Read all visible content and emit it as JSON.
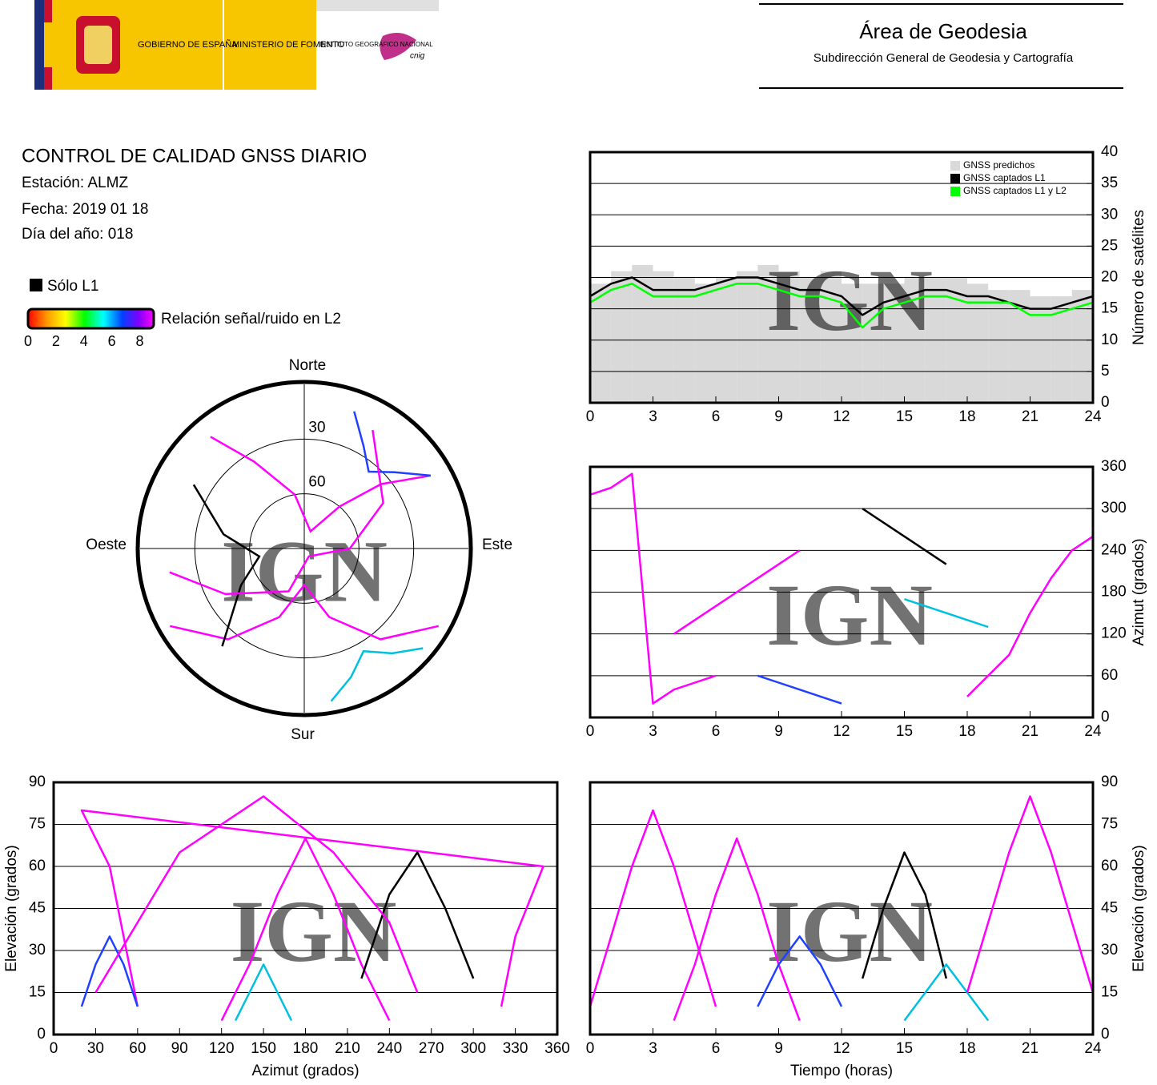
{
  "header": {
    "gobierno": "GOBIERNO DE ESPAÑA",
    "ministerio": "MINISTERIO DE FOMENTO",
    "instituto": "INSTITUTO GEOGRÁFICO NACIONAL",
    "cnig": "cnig",
    "area": "Área de Geodesia",
    "subdireccion": "Subdirección General de Geodesia y Cartografía"
  },
  "info": {
    "title": "CONTROL DE CALIDAD GNSS DIARIO",
    "station": "Estación: ALMZ",
    "date": "Fecha: 2019 01 18",
    "doy": "Día del año: 018"
  },
  "legend": {
    "l1_only": "Sólo L1",
    "colorbar_label": "Relación señal/ruido en L2",
    "colorbar_lim": [
      0,
      9
    ],
    "colorbar_ticks": [
      0,
      2,
      4,
      6,
      8
    ]
  },
  "watermark": "IGN",
  "chart_data": [
    {
      "type": "polar",
      "directions": {
        "north": "Norte",
        "south": "Sur",
        "east": "Este",
        "west": "Oeste"
      },
      "rlim": [
        90,
        0
      ],
      "rticks": [
        30,
        60
      ],
      "series": [
        {
          "color": "#ff00ff",
          "azimuth": [
            320,
            330,
            350,
            20,
            40,
            50,
            60
          ],
          "elevation": [
            10,
            35,
            60,
            80,
            60,
            35,
            10
          ]
        },
        {
          "color": "#ff00ff",
          "azimuth": [
            120,
            140,
            160,
            180,
            200,
            220,
            240
          ],
          "elevation": [
            5,
            25,
            50,
            70,
            50,
            25,
            5
          ]
        },
        {
          "color": "#000000",
          "azimuth": [
            300,
            280,
            260,
            240,
            220
          ],
          "elevation": [
            20,
            45,
            65,
            50,
            20
          ]
        },
        {
          "color": "#2040ff",
          "azimuth": [
            60,
            50,
            40,
            30,
            20
          ],
          "elevation": [
            10,
            25,
            35,
            25,
            10
          ]
        },
        {
          "color": "#00c0e0",
          "azimuth": [
            170,
            160,
            150,
            140,
            130
          ],
          "elevation": [
            5,
            15,
            25,
            15,
            5
          ]
        },
        {
          "color": "#ff00ff",
          "azimuth": [
            30,
            60,
            90,
            150,
            200,
            240,
            260
          ],
          "elevation": [
            15,
            40,
            65,
            85,
            65,
            40,
            15
          ]
        }
      ]
    },
    {
      "type": "line",
      "ylabel": "Número de satélites",
      "y_axis_side": "right",
      "grid": true,
      "legend": "top-right",
      "x": [
        0,
        1,
        2,
        3,
        4,
        5,
        6,
        7,
        8,
        9,
        10,
        11,
        12,
        13,
        14,
        15,
        16,
        17,
        18,
        19,
        20,
        21,
        22,
        23,
        24
      ],
      "xlim": [
        0,
        24
      ],
      "xticks": [
        0,
        3,
        6,
        9,
        12,
        15,
        18,
        21,
        24
      ],
      "ylim": [
        0,
        40
      ],
      "yticks": [
        0,
        5,
        10,
        15,
        20,
        25,
        30,
        35,
        40
      ],
      "series": [
        {
          "name": "GNSS predichos",
          "color": "#d9d9d9",
          "mark": "bar",
          "values": [
            19,
            21,
            22,
            21,
            20,
            19,
            20,
            21,
            22,
            21,
            20,
            21,
            19,
            19,
            19,
            20,
            20,
            20,
            19,
            18,
            18,
            17,
            17,
            18,
            18
          ]
        },
        {
          "name": "GNSS captados L1",
          "color": "#000000",
          "values": [
            17,
            19,
            20,
            18,
            18,
            18,
            19,
            20,
            20,
            19,
            18,
            18,
            17,
            14,
            16,
            17,
            18,
            18,
            17,
            17,
            16,
            15,
            15,
            16,
            17
          ]
        },
        {
          "name": "GNSS captados L1 y L2",
          "color": "#00ff00",
          "values": [
            16,
            18,
            19,
            17,
            17,
            17,
            18,
            19,
            19,
            18,
            17,
            17,
            16,
            12,
            15,
            16,
            17,
            17,
            16,
            16,
            16,
            14,
            14,
            15,
            16
          ]
        }
      ]
    },
    {
      "type": "line",
      "ylabel": "Azimut (grados)",
      "y_axis_side": "right",
      "grid": true,
      "xlim": [
        0,
        24
      ],
      "xticks": [
        0,
        3,
        6,
        9,
        12,
        15,
        18,
        21,
        24
      ],
      "ylim": [
        0,
        360
      ],
      "yticks": [
        0,
        60,
        120,
        180,
        240,
        300,
        360
      ],
      "series": [
        {
          "color": "#ff00ff",
          "x": [
            0,
            1,
            2,
            3,
            4,
            5,
            6
          ],
          "values": [
            320,
            330,
            350,
            20,
            40,
            50,
            60
          ]
        },
        {
          "color": "#ff00ff",
          "x": [
            4,
            5,
            6,
            7,
            8,
            9,
            10
          ],
          "values": [
            120,
            140,
            160,
            180,
            200,
            220,
            240
          ]
        },
        {
          "color": "#000000",
          "x": [
            13,
            14,
            15,
            16,
            17
          ],
          "values": [
            300,
            280,
            260,
            240,
            220
          ]
        },
        {
          "color": "#2040ff",
          "x": [
            8,
            9,
            10,
            11,
            12
          ],
          "values": [
            60,
            50,
            40,
            30,
            20
          ]
        },
        {
          "color": "#00c0e0",
          "x": [
            15,
            16,
            17,
            18,
            19
          ],
          "values": [
            170,
            160,
            150,
            140,
            130
          ]
        },
        {
          "color": "#ff00ff",
          "x": [
            18,
            19,
            20,
            21,
            22,
            23,
            24
          ],
          "values": [
            30,
            60,
            90,
            150,
            200,
            240,
            260
          ]
        }
      ]
    },
    {
      "type": "line",
      "xlabel": "Azimut (grados)",
      "ylabel": "Elevación (grados)",
      "y_axis_side": "left",
      "grid": true,
      "xlim": [
        0,
        360
      ],
      "xticks": [
        0,
        30,
        60,
        90,
        120,
        150,
        180,
        210,
        240,
        270,
        300,
        330,
        360
      ],
      "ylim": [
        0,
        90
      ],
      "yticks": [
        0,
        15,
        30,
        45,
        60,
        75,
        90
      ],
      "series": [
        {
          "color": "#ff00ff",
          "x": [
            320,
            330,
            350,
            20,
            40,
            50,
            60
          ],
          "values": [
            10,
            35,
            60,
            80,
            60,
            35,
            10
          ],
          "wrap": true
        },
        {
          "color": "#ff00ff",
          "x": [
            120,
            140,
            160,
            180,
            200,
            220,
            240
          ],
          "values": [
            5,
            25,
            50,
            70,
            50,
            25,
            5
          ]
        },
        {
          "color": "#000000",
          "x": [
            300,
            280,
            260,
            240,
            220
          ],
          "values": [
            20,
            45,
            65,
            50,
            20
          ]
        },
        {
          "color": "#2040ff",
          "x": [
            60,
            50,
            40,
            30,
            20
          ],
          "values": [
            10,
            25,
            35,
            25,
            10
          ]
        },
        {
          "color": "#00c0e0",
          "x": [
            170,
            160,
            150,
            140,
            130
          ],
          "values": [
            5,
            15,
            25,
            15,
            5
          ]
        },
        {
          "color": "#ff00ff",
          "x": [
            30,
            60,
            90,
            150,
            200,
            240,
            260
          ],
          "values": [
            15,
            40,
            65,
            85,
            65,
            40,
            15
          ]
        }
      ]
    },
    {
      "type": "line",
      "xlabel": "Tiempo (horas)",
      "ylabel": "Elevación (grados)",
      "y_axis_side": "right",
      "grid": true,
      "xlim": [
        0,
        24
      ],
      "xticks": [
        0,
        3,
        6,
        9,
        12,
        15,
        18,
        21,
        24
      ],
      "ylim": [
        0,
        90
      ],
      "yticks": [
        0,
        15,
        30,
        45,
        60,
        75,
        90
      ],
      "series": [
        {
          "color": "#ff00ff",
          "x": [
            0,
            1,
            2,
            3,
            4,
            5,
            6
          ],
          "values": [
            10,
            35,
            60,
            80,
            60,
            35,
            10
          ]
        },
        {
          "color": "#ff00ff",
          "x": [
            4,
            5,
            6,
            7,
            8,
            9,
            10
          ],
          "values": [
            5,
            25,
            50,
            70,
            50,
            25,
            5
          ]
        },
        {
          "color": "#000000",
          "x": [
            13,
            14,
            15,
            16,
            17
          ],
          "values": [
            20,
            45,
            65,
            50,
            20
          ]
        },
        {
          "color": "#2040ff",
          "x": [
            8,
            9,
            10,
            11,
            12
          ],
          "values": [
            10,
            25,
            35,
            25,
            10
          ]
        },
        {
          "color": "#00c0e0",
          "x": [
            15,
            16,
            17,
            18,
            19
          ],
          "values": [
            5,
            15,
            25,
            15,
            5
          ]
        },
        {
          "color": "#ff00ff",
          "x": [
            18,
            19,
            20,
            21,
            22,
            23,
            24
          ],
          "values": [
            15,
            40,
            65,
            85,
            65,
            40,
            15
          ]
        }
      ]
    }
  ]
}
